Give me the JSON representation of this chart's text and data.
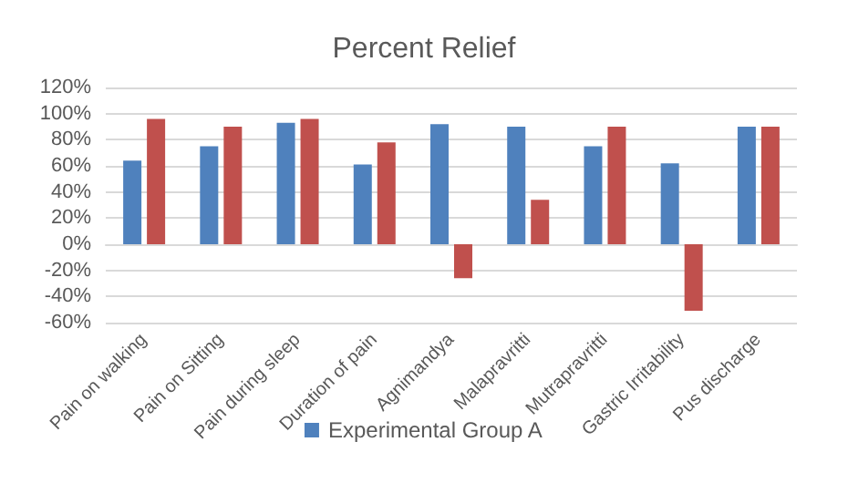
{
  "chart_data": {
    "type": "bar",
    "title": "Percent Relief",
    "categories": [
      "Pain on walking",
      "Pain on Sitting",
      "Pain during sleep",
      "Duration of pain",
      "Agnimandya",
      "Malapravritti",
      "Mutrapravritti",
      "Gastric Irritability",
      "Pus discharge"
    ],
    "series": [
      {
        "name": "Experimental Group A",
        "color": "#4f81bd",
        "values": [
          64,
          75,
          93,
          61,
          92,
          90,
          75,
          62,
          90
        ]
      },
      {
        "color": "#c0504d",
        "values": [
          96,
          90,
          96,
          78,
          -26,
          34,
          90,
          -51,
          90
        ]
      }
    ],
    "ylim": [
      -60,
      120
    ],
    "yticks": [
      {
        "value": -60,
        "label": "-60%"
      },
      {
        "value": -40,
        "label": "-40%"
      },
      {
        "value": -20,
        "label": "-20%"
      },
      {
        "value": 0,
        "label": "0%"
      },
      {
        "value": 20,
        "label": "20%"
      },
      {
        "value": 40,
        "label": "40%"
      },
      {
        "value": 60,
        "label": "60%"
      },
      {
        "value": 80,
        "label": "80%"
      },
      {
        "value": 100,
        "label": "100%"
      },
      {
        "value": 120,
        "label": "120%"
      }
    ],
    "grid": true,
    "legend": "bottom"
  }
}
